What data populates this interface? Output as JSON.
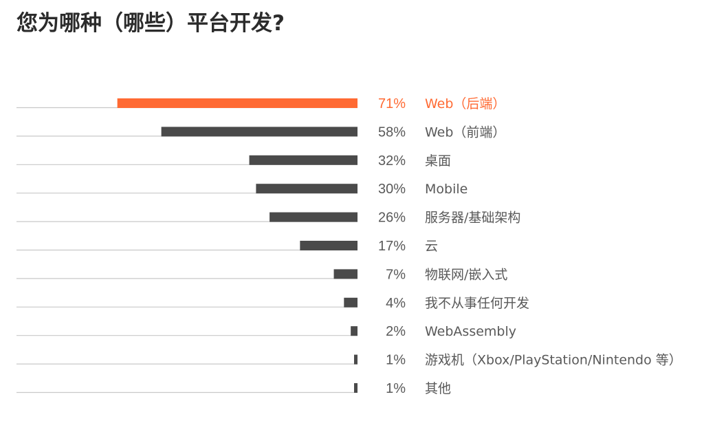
{
  "title": "您为哪种（哪些）平台开发?",
  "colors": {
    "highlight": "#ff6a33",
    "bar": "#4a4a4a",
    "baseline": "#c8c8c8",
    "text": "#595959"
  },
  "chart_data": {
    "type": "bar",
    "orientation": "horizontal",
    "title": "您为哪种（哪些）平台开发?",
    "value_format": "percent",
    "xlim": [
      0,
      100
    ],
    "grid": false,
    "legend": "none",
    "highlight_index": 0,
    "categories": [
      "Web（后端）",
      "Web（前端）",
      "桌面",
      "Mobile",
      "服务器/基础架构",
      "云",
      "物联网/嵌入式",
      "我不从事任何开发",
      "WebAssembly",
      "游戏机（Xbox/PlayStation/Nintendo 等）",
      "其他"
    ],
    "values": [
      71,
      58,
      32,
      30,
      26,
      17,
      7,
      4,
      2,
      1,
      1
    ],
    "value_labels": [
      "71%",
      "58%",
      "32%",
      "30%",
      "26%",
      "17%",
      "7%",
      "4%",
      "2%",
      "1%",
      "1%"
    ]
  }
}
